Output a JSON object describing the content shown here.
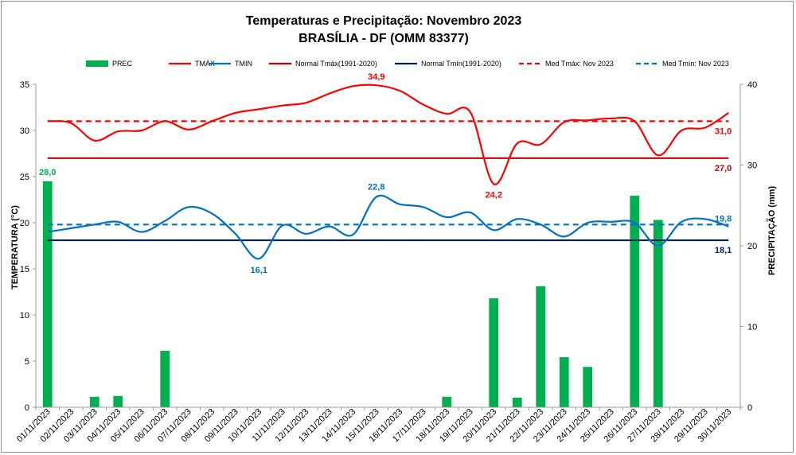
{
  "chart_data": {
    "type": "bar+line",
    "title": "Temperaturas  e Precipitação:  Novembro  2023",
    "subtitle": "BRASÍLIA - DF (OMM 83377)",
    "ylabel_left": "TEMPERATURA  (°C)",
    "ylabel_right": "PRECIPITAÇÃO (mm)",
    "ylim_left": [
      0,
      35
    ],
    "ylim_right": [
      0,
      40
    ],
    "yticks_left": [
      "0",
      "5",
      "10",
      "15",
      "20",
      "25",
      "30",
      "35"
    ],
    "yticks_right": [
      "0",
      "10",
      "20",
      "30",
      "40"
    ],
    "categories": [
      "01/11/2023",
      "02/11/2023",
      "03/11/2023",
      "04/11/2023",
      "05/11/2023",
      "06/11/2023",
      "07/11/2023",
      "08/11/2023",
      "09/11/2023",
      "10/11/2023",
      "11/11/2023",
      "12/11/2023",
      "13/11/2023",
      "14/11/2023",
      "15/11/2023",
      "16/11/2023",
      "17/11/2023",
      "18/11/2023",
      "19/11/2023",
      "20/11/2023",
      "21/11/2023",
      "22/11/2023",
      "23/11/2023",
      "24/11/2023",
      "25/11/2023",
      "26/11/2023",
      "27/11/2023",
      "28/11/2023",
      "29/11/2023",
      "30/11/2023"
    ],
    "legend": [
      "PREC",
      "TMÁX",
      "TMIN",
      "Normal Tmáx(1991-2020)",
      "Normal Tmín(1991-2020)",
      "Med Tmáx: Nov 2023",
      "Med Tmín: Nov 2023"
    ],
    "colors": {
      "prec": "#00b050",
      "tmax": "#ff0000",
      "tmin": "#0070c0",
      "normal_tmax": "#c00000",
      "normal_tmin": "#002060",
      "med_tmax": "#ff0000",
      "med_tmin": "#0070c0"
    },
    "series": [
      {
        "name": "PREC",
        "axis": "right",
        "values": [
          28.0,
          0,
          1.3,
          1.4,
          0,
          7.0,
          0,
          0,
          0,
          0,
          0,
          0,
          0,
          0,
          0,
          0,
          0,
          1.3,
          0,
          13.5,
          1.2,
          15.0,
          6.2,
          5.0,
          0,
          26.2,
          23.2,
          0,
          0,
          0
        ]
      },
      {
        "name": "TMÁX",
        "axis": "left",
        "values": [
          31.0,
          30.8,
          28.9,
          29.9,
          30.0,
          31.0,
          30.1,
          31.0,
          31.9,
          32.3,
          32.7,
          33.0,
          34.0,
          34.8,
          34.9,
          34.3,
          32.8,
          31.8,
          32.0,
          24.2,
          28.6,
          28.5,
          30.9,
          31.1,
          31.3,
          31.0,
          27.3,
          30.0,
          30.3,
          31.9
        ]
      },
      {
        "name": "TMIN",
        "axis": "left",
        "values": [
          19.0,
          19.4,
          19.8,
          20.1,
          19.0,
          20.2,
          21.7,
          21.0,
          18.8,
          16.1,
          19.7,
          18.8,
          19.6,
          18.7,
          22.8,
          22.0,
          21.7,
          20.6,
          21.1,
          19.2,
          20.4,
          19.8,
          18.5,
          20.0,
          20.1,
          20.0,
          17.5,
          20.1,
          20.4,
          19.6
        ]
      }
    ],
    "normal_tmax": 27.0,
    "normal_tmin": 18.1,
    "med_tmax": 31.0,
    "med_tmin": 19.8,
    "annotations": [
      {
        "series": "PREC",
        "index": 0,
        "label": "28,0"
      },
      {
        "series": "TMÁX",
        "index": 14,
        "label": "34,9"
      },
      {
        "series": "TMÁX",
        "index": 19,
        "label": "24,2"
      },
      {
        "series": "TMIN",
        "index": 9,
        "label": "16,1"
      },
      {
        "series": "TMIN",
        "index": 14,
        "label": "22,8"
      },
      {
        "series": "MED_TMAX",
        "index": 29,
        "label": "31,0"
      },
      {
        "series": "NORMAL_TMAX",
        "index": 29,
        "label": "27,0"
      },
      {
        "series": "MED_TMIN",
        "index": 29,
        "label": "19,8"
      },
      {
        "series": "NORMAL_TMIN",
        "index": 29,
        "label": "18,1"
      }
    ]
  }
}
